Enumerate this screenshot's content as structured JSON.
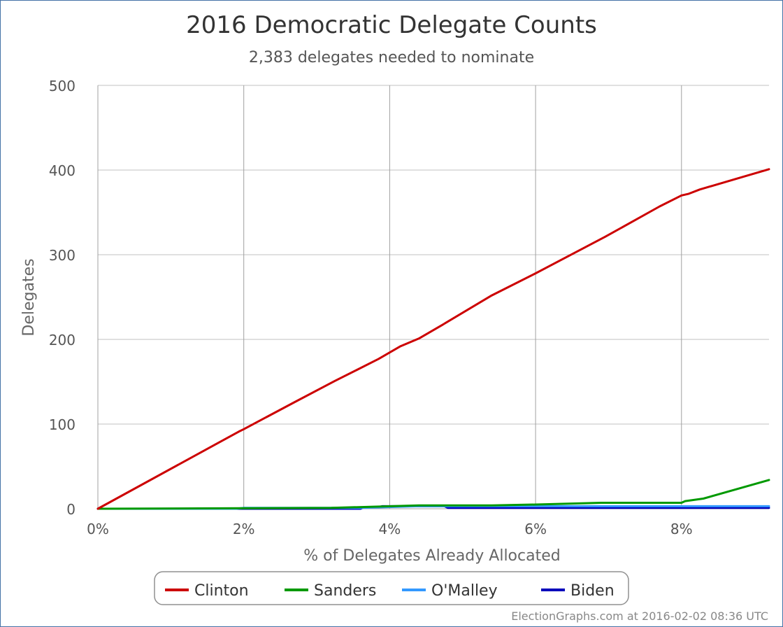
{
  "chart_data": {
    "type": "line",
    "title": "2016 Democratic Delegate Counts",
    "subtitle": "2,383 delegates needed to nominate",
    "xlabel": "% of Delegates Already Allocated",
    "ylabel": "Delegates",
    "xlim": [
      0,
      9.2
    ],
    "ylim": [
      0,
      500
    ],
    "x_ticks": [
      0,
      2,
      4,
      6,
      8
    ],
    "x_tick_labels": [
      "0%",
      "2%",
      "4%",
      "6%",
      "8%"
    ],
    "y_ticks": [
      0,
      100,
      200,
      300,
      400,
      500
    ],
    "y_tick_labels": [
      "0",
      "100",
      "200",
      "300",
      "400",
      "500"
    ],
    "grid": true,
    "legend_position": "bottom-center",
    "series": [
      {
        "name": "Clinton",
        "color": "#cc0000",
        "points": [
          [
            0,
            0
          ],
          [
            1.93,
            91
          ],
          [
            2.0,
            94
          ],
          [
            2.7,
            126
          ],
          [
            3.25,
            151
          ],
          [
            3.55,
            164
          ],
          [
            3.85,
            177
          ],
          [
            4.15,
            192
          ],
          [
            4.4,
            201
          ],
          [
            4.72,
            217
          ],
          [
            5.4,
            252
          ],
          [
            6.0,
            278
          ],
          [
            6.95,
            321
          ],
          [
            7.7,
            357
          ],
          [
            8.0,
            370
          ],
          [
            8.1,
            372
          ],
          [
            8.25,
            377
          ],
          [
            9.2,
            401
          ]
        ]
      },
      {
        "name": "Sanders",
        "color": "#009900",
        "points": [
          [
            0,
            0
          ],
          [
            3.2,
            1
          ],
          [
            4.4,
            4
          ],
          [
            5.4,
            4
          ],
          [
            6.0,
            5
          ],
          [
            6.9,
            7
          ],
          [
            8.0,
            7
          ],
          [
            8.05,
            9
          ],
          [
            8.3,
            12
          ],
          [
            9.2,
            34
          ]
        ]
      },
      {
        "name": "O'Malley",
        "color": "#3399ff",
        "points": [
          [
            0,
            0
          ],
          [
            1.9,
            0
          ],
          [
            2.0,
            1
          ],
          [
            3.6,
            1
          ],
          [
            4.4,
            3
          ],
          [
            9.2,
            3
          ]
        ]
      },
      {
        "name": "Biden",
        "color": "#0000bb",
        "points": [
          [
            0,
            0
          ],
          [
            3.6,
            0
          ],
          [
            3.65,
            2
          ],
          [
            3.85,
            2
          ],
          [
            3.9,
            3
          ],
          [
            4.75,
            3
          ],
          [
            4.8,
            1
          ],
          [
            9.2,
            1
          ]
        ]
      }
    ]
  },
  "credit": "ElectionGraphs.com at 2016-02-02 08:36 UTC"
}
